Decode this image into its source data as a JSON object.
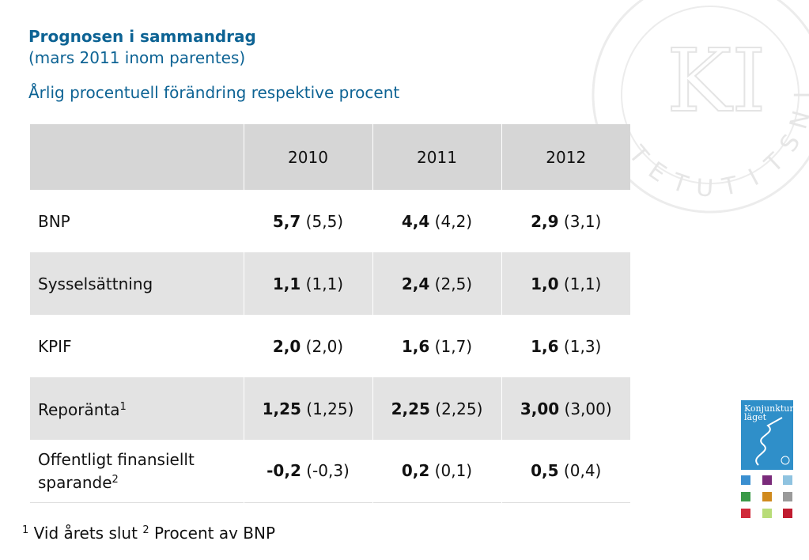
{
  "heading": {
    "title": "Prognosen i sammandrag",
    "subtitle": "(mars 2011 inom parentes)",
    "unit": "Årlig procentuell förändring respektive procent"
  },
  "table": {
    "columns": [
      "",
      "2010",
      "2011",
      "2012"
    ],
    "rows": [
      {
        "label": "BNP",
        "sup": "",
        "cells": [
          {
            "value": "5,7",
            "prev": " (5,5)"
          },
          {
            "value": "4,4",
            "prev": " (4,2)"
          },
          {
            "value": "2,9",
            "prev": " (3,1)"
          }
        ]
      },
      {
        "label": "Sysselsättning",
        "sup": "",
        "cells": [
          {
            "value": "1,1",
            "prev": " (1,1)"
          },
          {
            "value": "2,4",
            "prev": " (2,5)"
          },
          {
            "value": "1,0",
            "prev": " (1,1)"
          }
        ]
      },
      {
        "label": "KPIF",
        "sup": "",
        "cells": [
          {
            "value": "2,0",
            "prev": " (2,0)"
          },
          {
            "value": "1,6",
            "prev": " (1,7)"
          },
          {
            "value": "1,6",
            "prev": " (1,3)"
          }
        ]
      },
      {
        "label": "Reporänta",
        "sup": "1",
        "cells": [
          {
            "value": "1,25",
            "prev": " (1,25)"
          },
          {
            "value": "2,25",
            "prev": " (2,25)"
          },
          {
            "value": "3,00",
            "prev": " (3,00)"
          }
        ]
      },
      {
        "label": "Offentligt finansiellt sparande",
        "sup": "2",
        "cells": [
          {
            "value": "-0,2",
            "prev": " (-0,3)"
          },
          {
            "value": "0,2",
            "prev": " (0,1)"
          },
          {
            "value": "0,5",
            "prev": " (0,4)"
          }
        ]
      }
    ]
  },
  "footnote": {
    "n1": "1",
    "t1": " Vid årets slut ",
    "n2": "2",
    "t2": " Procent av BNP"
  },
  "watermark": {
    "text": "INSTITUTET",
    "monogram": "KI"
  },
  "booklet": {
    "line1": "Konjunktur",
    "line2": "läget"
  },
  "colors": {
    "heading": "#0d6394",
    "header_row": "#d6d6d6",
    "shaded_row": "#e3e3e3",
    "booklet": "#2f8fc9"
  }
}
